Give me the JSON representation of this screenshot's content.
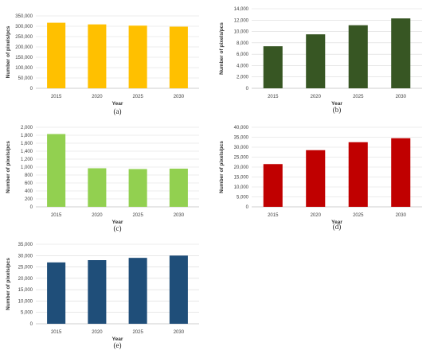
{
  "chart_data": [
    {
      "type": "bar",
      "caption": "(a)",
      "categories": [
        "2015",
        "2020",
        "2025",
        "2030"
      ],
      "values": [
        317000,
        309000,
        303000,
        298000
      ],
      "ylim": [
        0,
        350000
      ],
      "yticks": [
        "0",
        "50,000",
        "100,000",
        "150,000",
        "200,000",
        "250,000",
        "300,000",
        "350,000"
      ],
      "xlabel": "Year",
      "ylabel": "Number of pixels/pcs",
      "color": "#FFC000",
      "grid": true
    },
    {
      "type": "bar",
      "caption": "(b)",
      "categories": [
        "2015",
        "2020",
        "2025",
        "2030"
      ],
      "values": [
        7400,
        9500,
        11100,
        12300
      ],
      "ylim": [
        0,
        14000
      ],
      "yticks": [
        "0",
        "2,000",
        "4,000",
        "6,000",
        "8,000",
        "10,000",
        "12,000",
        "14,000"
      ],
      "xlabel": "Year",
      "ylabel": "Number of pixels/pcs",
      "color": "#375623",
      "grid": true
    },
    {
      "type": "bar",
      "caption": "(c)",
      "categories": [
        "2015",
        "2020",
        "2025",
        "2030"
      ],
      "values": [
        1830,
        970,
        950,
        960
      ],
      "ylim": [
        0,
        2000
      ],
      "yticks": [
        "0",
        "200",
        "400",
        "600",
        "800",
        "1,000",
        "1,200",
        "1,400",
        "1,600",
        "1,800",
        "2,000"
      ],
      "xlabel": "Year",
      "ylabel": "Number of pixels/pcs",
      "color": "#92D050",
      "grid": true
    },
    {
      "type": "bar",
      "caption": "(d)",
      "categories": [
        "2015",
        "2020",
        "2025",
        "2030"
      ],
      "values": [
        21500,
        28500,
        32500,
        34500
      ],
      "ylim": [
        0,
        40000
      ],
      "yticks": [
        "0",
        "5,000",
        "10,000",
        "15,000",
        "20,000",
        "25,000",
        "30,000",
        "35,000",
        "40,000"
      ],
      "xlabel": "Year",
      "ylabel": "Number of pixels/pcs",
      "color": "#C00000",
      "grid": true
    },
    {
      "type": "bar",
      "caption": "(e)",
      "categories": [
        "2015",
        "2020",
        "2025",
        "2030"
      ],
      "values": [
        27000,
        28000,
        29000,
        30000
      ],
      "ylim": [
        0,
        35000
      ],
      "yticks": [
        "0",
        "5,000",
        "10,000",
        "15,000",
        "20,000",
        "25,000",
        "30,000",
        "35,000"
      ],
      "xlabel": "Year",
      "ylabel": "Number of pixels/pcs",
      "color": "#1F4E79",
      "grid": true
    }
  ]
}
